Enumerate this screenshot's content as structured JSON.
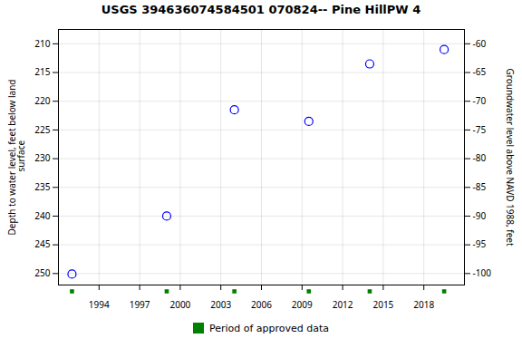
{
  "chart_data": {
    "type": "scatter",
    "title": "USGS 394636074584501 070824-- Pine HillPW 4",
    "x": [
      1992.0,
      1999.0,
      2004.0,
      2009.5,
      2014.0,
      2019.5
    ],
    "values": [
      250.1,
      240.0,
      221.5,
      223.5,
      213.5,
      211.0
    ],
    "color": "blue",
    "marker": "open circle",
    "xlim": [
      1991.0,
      2021.0
    ],
    "xticks": [
      1994,
      1997,
      2000,
      2003,
      2006,
      2009,
      2012,
      2015,
      2018
    ],
    "ylim": [
      252.0,
      207.5
    ],
    "yticks": [
      210,
      215,
      220,
      225,
      230,
      235,
      240,
      245,
      250
    ],
    "y2lim": [
      -102.0,
      -57.5
    ],
    "y2ticks": [
      -60,
      -65,
      -70,
      -75,
      -80,
      -85,
      -90,
      -95,
      -100
    ],
    "ylabel": "Depth to water level, feet below land\n surface",
    "y2label": "Groundwater level above NAVD 1988, feet",
    "grid": true,
    "legend": "bottom",
    "series": [
      {
        "name": "Period of approved data",
        "color": "#008000",
        "marker": "square",
        "x": [
          1992.0,
          1999.0,
          2004.0,
          2009.5,
          2014.0,
          2019.5
        ]
      }
    ]
  }
}
